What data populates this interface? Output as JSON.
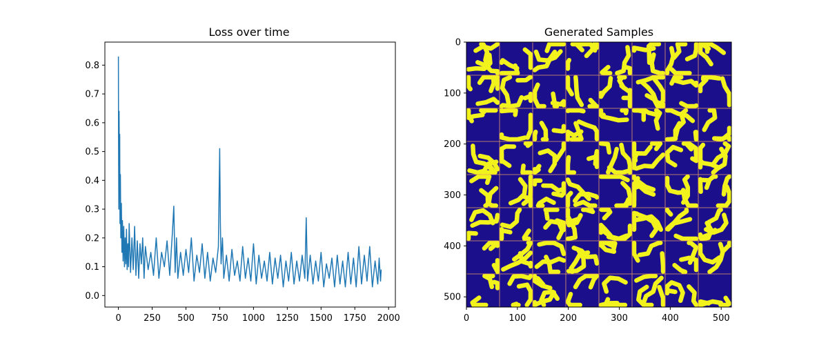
{
  "chart_data": [
    {
      "type": "line",
      "title": "Loss over time",
      "xlabel": "",
      "ylabel": "",
      "xlim": [
        -100,
        2050
      ],
      "ylim": [
        -0.04,
        0.88
      ],
      "x_ticks": [
        0,
        250,
        500,
        750,
        1000,
        1250,
        1500,
        1750,
        2000
      ],
      "x_tick_labels": [
        "0",
        "250",
        "500",
        "750",
        "1000",
        "1250",
        "1500",
        "1750",
        "2000"
      ],
      "y_ticks": [
        0.0,
        0.1,
        0.2,
        0.3,
        0.4,
        0.5,
        0.6,
        0.7,
        0.8
      ],
      "y_tick_labels": [
        "0.0",
        "0.1",
        "0.2",
        "0.3",
        "0.4",
        "0.5",
        "0.6",
        "0.7",
        "0.8"
      ],
      "grid": false,
      "series": [
        {
          "color": "#1f77b4",
          "x": [
            0,
            1,
            3,
            5,
            8,
            10,
            12,
            15,
            18,
            22,
            26,
            30,
            35,
            40,
            45,
            50,
            55,
            60,
            65,
            70,
            75,
            80,
            90,
            100,
            110,
            120,
            130,
            140,
            150,
            160,
            170,
            180,
            190,
            200,
            220,
            240,
            260,
            280,
            300,
            320,
            340,
            360,
            380,
            400,
            410,
            420,
            430,
            440,
            460,
            480,
            500,
            520,
            540,
            560,
            580,
            600,
            620,
            640,
            660,
            680,
            700,
            720,
            740,
            750,
            755,
            760,
            770,
            780,
            800,
            820,
            840,
            860,
            880,
            900,
            920,
            940,
            960,
            980,
            1000,
            1020,
            1040,
            1060,
            1080,
            1100,
            1120,
            1140,
            1160,
            1180,
            1200,
            1220,
            1240,
            1260,
            1280,
            1300,
            1320,
            1340,
            1360,
            1380,
            1390,
            1400,
            1420,
            1440,
            1460,
            1480,
            1500,
            1520,
            1540,
            1560,
            1580,
            1600,
            1620,
            1640,
            1660,
            1680,
            1700,
            1720,
            1740,
            1760,
            1780,
            1800,
            1820,
            1840,
            1860,
            1880,
            1900,
            1920,
            1930,
            1940,
            1945
          ],
          "values": [
            0.83,
            0.55,
            0.3,
            0.64,
            0.35,
            0.56,
            0.25,
            0.42,
            0.2,
            0.32,
            0.15,
            0.26,
            0.12,
            0.24,
            0.1,
            0.2,
            0.11,
            0.23,
            0.09,
            0.18,
            0.1,
            0.25,
            0.08,
            0.2,
            0.09,
            0.24,
            0.07,
            0.19,
            0.06,
            0.18,
            0.11,
            0.2,
            0.06,
            0.17,
            0.09,
            0.15,
            0.07,
            0.2,
            0.06,
            0.15,
            0.1,
            0.19,
            0.07,
            0.22,
            0.31,
            0.08,
            0.2,
            0.06,
            0.15,
            0.07,
            0.16,
            0.08,
            0.2,
            0.05,
            0.14,
            0.08,
            0.18,
            0.06,
            0.15,
            0.05,
            0.13,
            0.08,
            0.17,
            0.51,
            0.25,
            0.11,
            0.2,
            0.06,
            0.14,
            0.05,
            0.16,
            0.07,
            0.12,
            0.05,
            0.17,
            0.06,
            0.13,
            0.05,
            0.18,
            0.04,
            0.14,
            0.06,
            0.12,
            0.05,
            0.15,
            0.04,
            0.13,
            0.06,
            0.14,
            0.03,
            0.12,
            0.05,
            0.15,
            0.04,
            0.12,
            0.05,
            0.14,
            0.06,
            0.27,
            0.05,
            0.14,
            0.04,
            0.12,
            0.05,
            0.15,
            0.03,
            0.11,
            0.06,
            0.13,
            0.03,
            0.14,
            0.04,
            0.12,
            0.03,
            0.15,
            0.04,
            0.13,
            0.03,
            0.17,
            0.04,
            0.14,
            0.05,
            0.17,
            0.03,
            0.12,
            0.04,
            0.13,
            0.05,
            0.09
          ]
        }
      ]
    },
    {
      "type": "heatmap",
      "title": "Generated Samples",
      "xlim": [
        0,
        520
      ],
      "ylim": [
        520,
        0
      ],
      "x_ticks": [
        0,
        100,
        200,
        300,
        400,
        500
      ],
      "x_tick_labels": [
        "0",
        "100",
        "200",
        "300",
        "400",
        "500"
      ],
      "y_ticks": [
        0,
        100,
        200,
        300,
        400,
        500
      ],
      "y_tick_labels": [
        "0",
        "100",
        "200",
        "300",
        "400",
        "500"
      ],
      "grid_rows": 8,
      "grid_cols": 8,
      "colors": {
        "background": "#1c0f8c",
        "foreground": "#f2f21c",
        "grid_line": "#e6a060"
      }
    }
  ]
}
